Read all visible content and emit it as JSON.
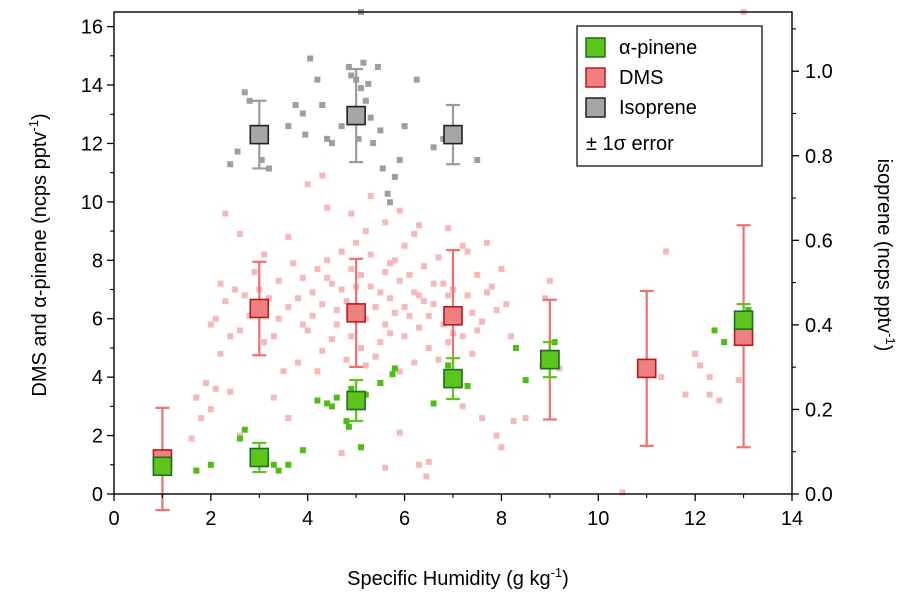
{
  "chart_data": {
    "type": "scatter",
    "xlabel": "Specific Humidity (g kg",
    "xlabel_sup": "-1",
    "xlabel_end": ")",
    "ylabel": "DMS and α-pinene (ncps pptv",
    "ylabel_sup": "-1",
    "ylabel_end": ")",
    "y2label": "isoprene (ncps pptv",
    "y2label_sup": "-1",
    "y2label_end": ")",
    "xlim": [
      0,
      14
    ],
    "ylim": [
      0,
      16.5
    ],
    "y2lim": [
      0,
      1.14
    ],
    "xticks": [
      "0",
      "2",
      "4",
      "6",
      "8",
      "10",
      "12",
      "14"
    ],
    "yticks": [
      "0",
      "2",
      "4",
      "6",
      "8",
      "10",
      "12",
      "14",
      "16"
    ],
    "y2ticks": [
      "0.0",
      "0.2",
      "0.4",
      "0.6",
      "0.8",
      "1.0"
    ],
    "legend_position": "top-right",
    "legend_error_label": "± 1σ error",
    "colors": {
      "alpha_pinene_fill": "#5cc41a",
      "alpha_pinene_edge": "#1e6e22",
      "alpha_pinene_points": "#4fbd14",
      "dms_fill": "#f08080",
      "dms_edge": "#b81a1a",
      "dms_points": "#f6b9b9",
      "dms_error": "#ee7070",
      "isoprene_fill": "#a6a6a6",
      "isoprene_edge": "#202020",
      "isoprene_points": "#9e9e9e",
      "isoprene_error": "#9b9b9b"
    },
    "series": [
      {
        "name": "α-pinene",
        "axis": "left",
        "binned": [
          {
            "x": 1,
            "y": 0.95,
            "err": 0.0
          },
          {
            "x": 3,
            "y": 1.25,
            "err": 0.5
          },
          {
            "x": 5,
            "y": 3.2,
            "err": 0.7
          },
          {
            "x": 7,
            "y": 3.95,
            "err": 0.7
          },
          {
            "x": 9,
            "y": 4.6,
            "err": 0.6
          },
          {
            "x": 13,
            "y": 5.95,
            "err": 0.55
          }
        ],
        "points": [
          [
            1.7,
            0.8
          ],
          [
            2.0,
            1.0
          ],
          [
            2.6,
            1.9
          ],
          [
            2.7,
            2.2
          ],
          [
            3.3,
            1.0
          ],
          [
            3.4,
            0.8
          ],
          [
            3.6,
            1.0
          ],
          [
            3.9,
            1.5
          ],
          [
            4.2,
            3.2
          ],
          [
            4.4,
            3.1
          ],
          [
            4.5,
            3.0
          ],
          [
            4.6,
            3.3
          ],
          [
            4.8,
            2.5
          ],
          [
            4.85,
            2.3
          ],
          [
            4.9,
            3.6
          ],
          [
            5.1,
            1.6
          ],
          [
            5.2,
            3.4
          ],
          [
            5.5,
            3.8
          ],
          [
            5.75,
            4.1
          ],
          [
            5.8,
            4.3
          ],
          [
            6.6,
            3.1
          ],
          [
            6.9,
            4.4
          ],
          [
            7.3,
            3.7
          ],
          [
            8.3,
            5.0
          ],
          [
            8.5,
            3.9
          ],
          [
            8.85,
            4.4
          ],
          [
            9.1,
            5.2
          ],
          [
            12.4,
            5.6
          ],
          [
            12.6,
            5.2
          ],
          [
            12.9,
            6.0
          ],
          [
            13.1,
            6.3
          ]
        ]
      },
      {
        "name": "DMS",
        "axis": "left",
        "binned": [
          {
            "x": 1,
            "y": 1.2,
            "err": 1.75
          },
          {
            "x": 3,
            "y": 6.35,
            "err": 1.6
          },
          {
            "x": 5,
            "y": 6.2,
            "err": 1.85
          },
          {
            "x": 7,
            "y": 6.1,
            "err": 2.25
          },
          {
            "x": 9,
            "y": 4.6,
            "err": 2.05
          },
          {
            "x": 11,
            "y": 4.3,
            "err": 2.65
          },
          {
            "x": 13,
            "y": 5.4,
            "err": 3.8
          }
        ],
        "points": [
          [
            1.6,
            1.9
          ],
          [
            1.7,
            3.3
          ],
          [
            1.8,
            2.6
          ],
          [
            1.9,
            3.8
          ],
          [
            2.0,
            2.9
          ],
          [
            2.1,
            3.6
          ],
          [
            2.4,
            3.5
          ],
          [
            2.6,
            2.0
          ],
          [
            3.3,
            3.3
          ],
          [
            3.6,
            2.6
          ],
          [
            4.7,
            1.4
          ],
          [
            5.6,
            0.9
          ],
          [
            5.9,
            2.1
          ],
          [
            6.3,
            1.0
          ],
          [
            6.45,
            0.6
          ],
          [
            6.5,
            1.1
          ],
          [
            7.2,
            3.0
          ],
          [
            7.6,
            2.6
          ],
          [
            7.9,
            2.0
          ],
          [
            8.0,
            1.6
          ],
          [
            8.25,
            2.5
          ],
          [
            8.5,
            2.6
          ],
          [
            8.9,
            6.7
          ],
          [
            9.0,
            7.3
          ],
          [
            9.2,
            4.3
          ],
          [
            10.5,
            0.05
          ],
          [
            11.3,
            4.0
          ],
          [
            11.4,
            8.3
          ],
          [
            11.8,
            3.4
          ],
          [
            12.0,
            4.8
          ],
          [
            12.1,
            4.4
          ],
          [
            12.3,
            4.0
          ],
          [
            12.3,
            3.4
          ],
          [
            12.5,
            3.2
          ],
          [
            12.9,
            3.9
          ],
          [
            13.0,
            16.5
          ],
          [
            4.0,
            10.6
          ],
          [
            4.3,
            10.9
          ],
          [
            4.4,
            9.8
          ],
          [
            5.2,
            9.0
          ],
          [
            5.6,
            9.3
          ],
          [
            6.3,
            9.2
          ],
          [
            6.9,
            9.1
          ],
          [
            7.3,
            8.3
          ],
          [
            7.7,
            8.6
          ],
          [
            2.3,
            9.6
          ],
          [
            2.6,
            8.9
          ],
          [
            2.2,
            7.2
          ],
          [
            2.1,
            6.0
          ],
          [
            2.0,
            5.8
          ],
          [
            2.3,
            6.6
          ],
          [
            2.5,
            7.0
          ],
          [
            2.7,
            6.8
          ],
          [
            3.1,
            8.2
          ],
          [
            3.4,
            7.3
          ],
          [
            3.6,
            6.4
          ],
          [
            3.9,
            5.8
          ],
          [
            3.3,
            5.4
          ],
          [
            3.9,
            7.4
          ],
          [
            4.1,
            6.9
          ],
          [
            4.5,
            7.2
          ],
          [
            4.6,
            6.3
          ],
          [
            4.8,
            6.6
          ],
          [
            4.9,
            7.7
          ],
          [
            5.3,
            7.1
          ],
          [
            5.4,
            6.4
          ],
          [
            5.5,
            6.9
          ],
          [
            5.6,
            5.8
          ],
          [
            5.7,
            6.7
          ],
          [
            5.9,
            7.3
          ],
          [
            6.1,
            6.1
          ],
          [
            6.2,
            6.9
          ],
          [
            6.3,
            5.7
          ],
          [
            6.4,
            7.8
          ],
          [
            6.6,
            6.5
          ],
          [
            6.8,
            7.2
          ],
          [
            6.9,
            5.2
          ],
          [
            7.1,
            6.3
          ],
          [
            7.3,
            6.8
          ],
          [
            7.6,
            5.9
          ],
          [
            7.8,
            7.1
          ],
          [
            8.1,
            6.5
          ],
          [
            8.2,
            5.4
          ],
          [
            4.0,
            5.6
          ],
          [
            4.3,
            4.9
          ],
          [
            4.5,
            5.3
          ],
          [
            4.8,
            4.6
          ],
          [
            5.1,
            5.0
          ],
          [
            5.4,
            4.7
          ],
          [
            5.7,
            5.5
          ],
          [
            5.9,
            4.2
          ],
          [
            6.2,
            4.5
          ],
          [
            6.5,
            5.0
          ],
          [
            6.7,
            4.6
          ],
          [
            7.4,
            4.8
          ],
          [
            7.5,
            5.6
          ],
          [
            3.5,
            4.2
          ],
          [
            3.8,
            4.5
          ],
          [
            4.2,
            4.2
          ],
          [
            4.4,
            8.0
          ],
          [
            4.7,
            8.3
          ],
          [
            5.0,
            8.6
          ],
          [
            5.3,
            8.2
          ],
          [
            5.8,
            8.0
          ],
          [
            6.0,
            8.5
          ],
          [
            6.7,
            8.1
          ],
          [
            7.2,
            8.5
          ],
          [
            3.2,
            6.7
          ],
          [
            3.7,
            7.9
          ],
          [
            4.2,
            7.7
          ],
          [
            4.9,
            5.4
          ],
          [
            5.2,
            4.4
          ],
          [
            5.6,
            7.6
          ],
          [
            6.0,
            6.4
          ],
          [
            6.5,
            6.1
          ],
          [
            6.8,
            5.8
          ],
          [
            7.0,
            7.0
          ],
          [
            7.5,
            7.5
          ],
          [
            3.1,
            5.2
          ],
          [
            2.9,
            7.6
          ],
          [
            2.4,
            5.4
          ],
          [
            4.6,
            5.8
          ],
          [
            5.0,
            7.1
          ],
          [
            5.5,
            5.2
          ],
          [
            6.0,
            5.4
          ],
          [
            6.3,
            6.8
          ],
          [
            7.4,
            6.2
          ],
          [
            7.7,
            6.9
          ],
          [
            4.1,
            6.1
          ],
          [
            4.3,
            6.5
          ],
          [
            4.7,
            7.0
          ],
          [
            5.2,
            6.0
          ],
          [
            5.8,
            6.2
          ],
          [
            6.1,
            7.5
          ],
          [
            6.6,
            7.2
          ],
          [
            7.0,
            5.5
          ],
          [
            3.4,
            6.0
          ],
          [
            3.0,
            7.0
          ],
          [
            2.8,
            6.1
          ],
          [
            2.6,
            5.6
          ],
          [
            2.2,
            4.8
          ],
          [
            3.8,
            6.7
          ],
          [
            4.4,
            7.4
          ],
          [
            5.1,
            7.5
          ],
          [
            5.7,
            7.9
          ],
          [
            6.4,
            6.6
          ],
          [
            6.9,
            6.8
          ],
          [
            7.2,
            5.4
          ],
          [
            7.9,
            6.3
          ],
          [
            8.0,
            7.7
          ],
          [
            3.6,
            8.8
          ],
          [
            4.9,
            9.6
          ],
          [
            5.3,
            10.2
          ],
          [
            6.2,
            8.9
          ],
          [
            5.9,
            9.7
          ]
        ]
      },
      {
        "name": "Isoprene",
        "axis": "right",
        "binned": [
          {
            "x": 3,
            "y": 0.85,
            "err": 0.08
          },
          {
            "x": 5,
            "y": 0.895,
            "err": 0.11
          },
          {
            "x": 7,
            "y": 0.85,
            "err": 0.07
          }
        ],
        "points": [
          [
            2.4,
            0.78
          ],
          [
            2.55,
            0.81
          ],
          [
            2.7,
            0.95
          ],
          [
            2.8,
            0.93
          ],
          [
            3.05,
            0.79
          ],
          [
            3.2,
            0.77
          ],
          [
            3.6,
            0.87
          ],
          [
            3.75,
            0.92
          ],
          [
            3.9,
            0.9
          ],
          [
            3.95,
            0.85
          ],
          [
            4.05,
            1.03
          ],
          [
            4.2,
            0.98
          ],
          [
            4.3,
            0.92
          ],
          [
            4.4,
            0.84
          ],
          [
            4.5,
            0.83
          ],
          [
            4.7,
            0.87
          ],
          [
            4.85,
            1.01
          ],
          [
            4.9,
            0.99
          ],
          [
            5.0,
            0.98
          ],
          [
            5.05,
            0.84
          ],
          [
            5.1,
            0.96
          ],
          [
            5.15,
            1.02
          ],
          [
            5.2,
            0.93
          ],
          [
            5.25,
            0.97
          ],
          [
            5.3,
            0.89
          ],
          [
            5.35,
            0.83
          ],
          [
            5.45,
            1.01
          ],
          [
            5.5,
            0.86
          ],
          [
            5.55,
            0.77
          ],
          [
            5.65,
            0.71
          ],
          [
            5.7,
            0.69
          ],
          [
            5.8,
            0.75
          ],
          [
            5.9,
            0.79
          ],
          [
            6.0,
            0.87
          ],
          [
            6.25,
            0.98
          ],
          [
            6.6,
            0.82
          ],
          [
            6.8,
            0.84
          ],
          [
            7.1,
            0.86
          ],
          [
            7.5,
            0.79
          ],
          [
            5.1,
            1.14
          ]
        ]
      }
    ]
  }
}
